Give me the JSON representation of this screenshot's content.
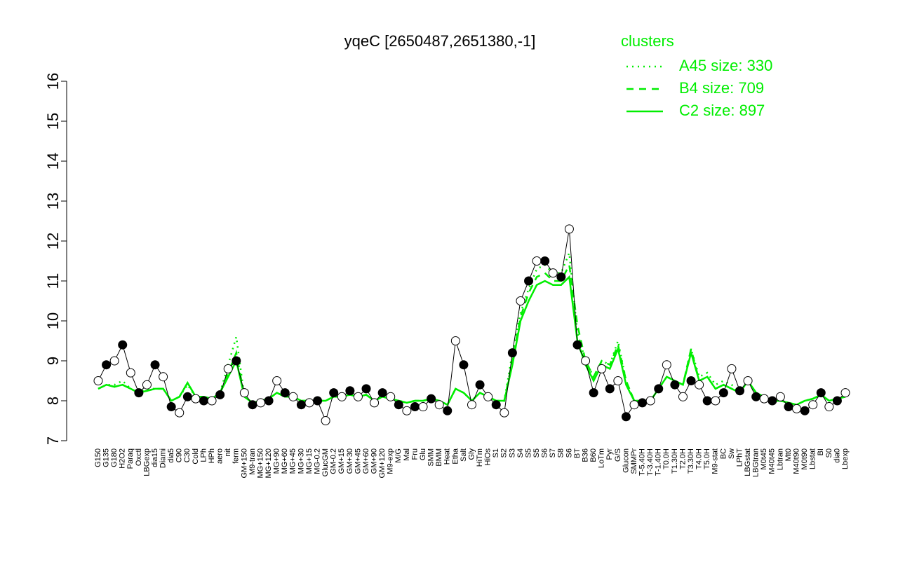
{
  "chart_data": {
    "type": "line",
    "title": "yqeC [2650487,2651380,-1]",
    "legend_title": "clusters",
    "legend_color": "#00ee00",
    "categories": [
      "G150",
      "G135",
      "G180",
      "H2O2",
      "Paraq",
      "Oxctl",
      "LBGexp",
      "dia15",
      "Diami",
      "dia5",
      "C90",
      "C30",
      "Cold",
      "LPh",
      "HPh",
      "aero",
      "nit",
      "ferm",
      "GM+150",
      "M9-tran",
      "MG+150",
      "MG+120",
      "MG+90",
      "MG+60",
      "MG+45",
      "MG+30",
      "MG+15",
      "MG-0.2",
      "GlucGM",
      "GM-0.2",
      "GM+15",
      "GM+30",
      "GM+45",
      "GM+60",
      "GM+90",
      "GM+120",
      "M9-exp",
      "M/G",
      "Mal",
      "Fru",
      "Glu",
      "SMM",
      "BMM",
      "Heat",
      "Etha",
      "Salt",
      "Gly",
      "HiTm",
      "HiOs",
      "S1",
      "S2",
      "S3",
      "S4",
      "S5",
      "S5",
      "S6",
      "S7",
      "S8",
      "S6",
      "BT",
      "B36",
      "B60",
      "LoTm",
      "Pyr",
      "G/S",
      "Glucon",
      "SMMPr",
      "T-5.40H",
      "T-3.40H",
      "T-1.40H",
      "T0.0H",
      "T1.30H",
      "T2.0H",
      "T3.30H",
      "T4.0H",
      "T5.0H",
      "M9-stat",
      "BC",
      "Sw",
      "LPhT",
      "LBGstat",
      "LBGtran",
      "M0t45",
      "M40t45",
      "Lbtran",
      "Mt0",
      "M40t90",
      "M0t90",
      "Lbstat",
      "BI",
      "S0",
      "dia0",
      "Lbexp"
    ],
    "point_values": [
      8.5,
      8.9,
      9.0,
      9.4,
      8.7,
      8.2,
      8.4,
      8.9,
      8.6,
      7.85,
      7.7,
      8.1,
      8.05,
      8.0,
      8.0,
      8.15,
      8.8,
      9.0,
      8.2,
      7.9,
      7.95,
      8.0,
      8.5,
      8.2,
      8.1,
      7.9,
      7.95,
      8.0,
      7.5,
      8.2,
      8.1,
      8.25,
      8.1,
      8.3,
      7.95,
      8.2,
      8.1,
      7.9,
      7.75,
      7.85,
      7.85,
      8.05,
      7.9,
      7.75,
      9.5,
      8.9,
      7.9,
      8.4,
      8.1,
      7.9,
      7.7,
      9.2,
      10.5,
      11.0,
      11.5,
      11.5,
      11.2,
      11.1,
      12.3,
      9.4,
      9.0,
      8.2,
      8.8,
      8.3,
      8.5,
      7.6,
      7.9,
      7.95,
      8.0,
      8.3,
      8.9,
      8.4,
      8.1,
      8.5,
      8.4,
      8.0,
      8.0,
      8.2,
      8.8,
      8.25,
      8.5,
      8.1,
      8.05,
      8.0,
      8.1,
      7.85,
      7.8,
      7.75,
      7.9,
      8.2,
      7.85,
      8.0,
      8.2
    ],
    "series": [
      {
        "name": "A45 size: 330",
        "color": "#00ee00",
        "dash": "dotted",
        "values": [
          8.3,
          8.4,
          8.4,
          8.5,
          8.3,
          8.2,
          8.3,
          8.3,
          8.3,
          8.0,
          8.1,
          8.4,
          8.1,
          8.1,
          8.05,
          8.2,
          8.9,
          9.6,
          8.1,
          7.95,
          8.0,
          8.05,
          8.2,
          8.1,
          8.1,
          8.0,
          8.0,
          8.0,
          8.0,
          8.1,
          8.1,
          8.15,
          8.1,
          8.15,
          8.0,
          8.1,
          8.05,
          8.0,
          7.95,
          8.0,
          8.0,
          8.05,
          8.0,
          7.9,
          8.3,
          8.2,
          8.0,
          8.2,
          8.1,
          8.0,
          8.0,
          9.2,
          10.2,
          10.8,
          11.3,
          11.4,
          11.2,
          11.2,
          11.7,
          9.7,
          9.0,
          8.6,
          9.0,
          8.9,
          9.5,
          8.5,
          8.0,
          8.0,
          8.0,
          8.3,
          8.6,
          8.5,
          8.4,
          9.3,
          8.6,
          8.7,
          8.4,
          8.5,
          8.4,
          8.2,
          8.5,
          8.2,
          8.1,
          8.0,
          8.0,
          7.95,
          7.9,
          8.0,
          8.05,
          8.15,
          8.0,
          8.05,
          8.1
        ]
      },
      {
        "name": "B4 size: 709",
        "color": "#00ee00",
        "dash": "dashed",
        "values": [
          8.3,
          8.4,
          8.35,
          8.4,
          8.3,
          8.2,
          8.25,
          8.3,
          8.3,
          8.0,
          8.1,
          8.45,
          8.1,
          8.1,
          8.05,
          8.2,
          8.7,
          9.2,
          8.1,
          7.95,
          8.0,
          8.05,
          8.2,
          8.1,
          8.1,
          8.0,
          8.0,
          8.0,
          8.0,
          8.1,
          8.1,
          8.15,
          8.1,
          8.15,
          8.0,
          8.1,
          8.05,
          8.0,
          7.95,
          8.0,
          8.0,
          8.05,
          8.0,
          7.9,
          8.3,
          8.2,
          8.0,
          8.2,
          8.1,
          8.0,
          8.0,
          9.0,
          10.1,
          10.7,
          11.1,
          11.2,
          11.0,
          11.0,
          11.4,
          9.9,
          9.0,
          8.6,
          9.0,
          8.9,
          9.4,
          8.5,
          8.0,
          8.0,
          8.0,
          8.3,
          8.6,
          8.5,
          8.4,
          9.3,
          8.5,
          8.6,
          8.3,
          8.4,
          8.3,
          8.2,
          8.5,
          8.2,
          8.1,
          8.0,
          8.0,
          7.95,
          7.9,
          8.0,
          8.05,
          8.15,
          8.0,
          8.05,
          8.1
        ]
      },
      {
        "name": "C2 size: 897",
        "color": "#00ee00",
        "dash": "solid",
        "values": [
          8.3,
          8.4,
          8.35,
          8.4,
          8.3,
          8.2,
          8.25,
          8.3,
          8.3,
          8.0,
          8.1,
          8.45,
          8.1,
          8.1,
          8.05,
          8.2,
          8.6,
          9.0,
          8.1,
          7.95,
          8.0,
          8.05,
          8.2,
          8.1,
          8.1,
          8.0,
          8.0,
          8.0,
          8.0,
          8.1,
          8.1,
          8.15,
          8.1,
          8.15,
          8.0,
          8.1,
          8.05,
          8.0,
          7.95,
          8.0,
          8.0,
          8.05,
          8.0,
          7.9,
          8.3,
          8.2,
          8.0,
          8.2,
          8.1,
          8.0,
          8.0,
          8.9,
          10.0,
          10.5,
          10.9,
          11.0,
          10.9,
          10.9,
          11.1,
          9.5,
          8.9,
          8.5,
          8.9,
          8.8,
          9.3,
          8.4,
          8.0,
          8.0,
          8.0,
          8.3,
          8.6,
          8.5,
          8.4,
          9.2,
          8.5,
          8.6,
          8.3,
          8.4,
          8.3,
          8.2,
          8.5,
          8.2,
          8.1,
          8.0,
          8.0,
          7.95,
          7.9,
          8.0,
          8.05,
          8.15,
          8.0,
          8.05,
          8.1
        ]
      }
    ],
    "ylim": [
      7,
      16
    ],
    "yticks": [
      7,
      8,
      9,
      10,
      11,
      12,
      13,
      14,
      15,
      16
    ]
  }
}
